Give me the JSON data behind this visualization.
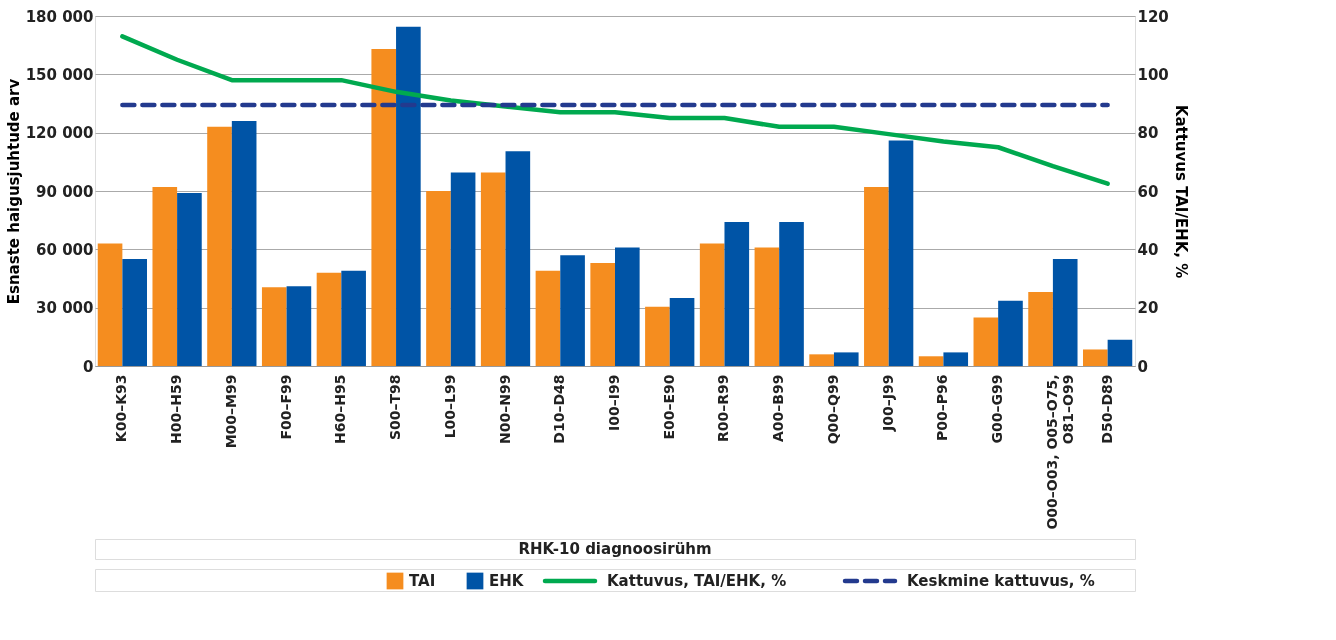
{
  "chart_data": {
    "type": "bar",
    "xlabel": "RHK-10 diagnoosirühm",
    "ylabel": "Esnaste haigusjuhtude arv",
    "y2label": "Kattuvus TAI/EHK, %",
    "categories": [
      "K00–K93",
      "H00–H59",
      "M00–M99",
      "F00–F99",
      "H60–H95",
      "S00–T98",
      "L00–L99",
      "N00–N99",
      "D10–D48",
      "I00–I99",
      "E00–E90",
      "R00–R99",
      "A00–B99",
      "Q00–Q99",
      "J00–J99",
      "P00–P96",
      "G00–G99",
      "O00–O03, O05–O75, O81–O99",
      "D50–D89"
    ],
    "series": [
      {
        "name": "TAI",
        "color": "#f58d1f",
        "values": [
          63000,
          92000,
          123000,
          40500,
          48000,
          163000,
          90000,
          99500,
          49000,
          53000,
          30500,
          63000,
          61000,
          6000,
          92000,
          5000,
          25000,
          38000,
          8500
        ]
      },
      {
        "name": "EHK",
        "color": "#0054a6",
        "values": [
          55000,
          89000,
          126000,
          41000,
          49000,
          174500,
          99500,
          110500,
          57000,
          61000,
          35000,
          74000,
          74000,
          7000,
          116000,
          7000,
          33500,
          55000,
          13500
        ]
      },
      {
        "name": "Kattuvus, TAI/EHK, %",
        "type": "line",
        "axis": "y2",
        "color": "#00a94f",
        "line_style": "solid",
        "values": [
          113,
          105,
          98,
          98,
          98,
          94,
          91,
          89,
          87,
          87,
          85,
          85,
          82,
          82,
          79.5,
          77,
          75,
          68.5,
          62.5
        ]
      },
      {
        "name": "Keskmine kattuvus, %",
        "type": "line",
        "axis": "y2",
        "color": "#233a8e",
        "line_style": "dashed",
        "values": [
          89.5,
          89.5,
          89.5,
          89.5,
          89.5,
          89.5,
          89.5,
          89.5,
          89.5,
          89.5,
          89.5,
          89.5,
          89.5,
          89.5,
          89.5,
          89.5,
          89.5,
          89.5,
          89.5
        ]
      }
    ],
    "ylim": [
      0,
      180000
    ],
    "yticks": [
      {
        "value": 0,
        "label": "0"
      },
      {
        "value": 30000,
        "label": "30 000"
      },
      {
        "value": 60000,
        "label": "60 000"
      },
      {
        "value": 90000,
        "label": "90 000"
      },
      {
        "value": 120000,
        "label": "120 000"
      },
      {
        "value": 150000,
        "label": "150 000"
      },
      {
        "value": 180000,
        "label": "180 000"
      }
    ],
    "y2lim": [
      0,
      120
    ],
    "y2ticks": [
      0,
      20,
      40,
      60,
      80,
      100,
      120
    ],
    "grid": "y",
    "legend": "bottom",
    "marker": "none"
  }
}
